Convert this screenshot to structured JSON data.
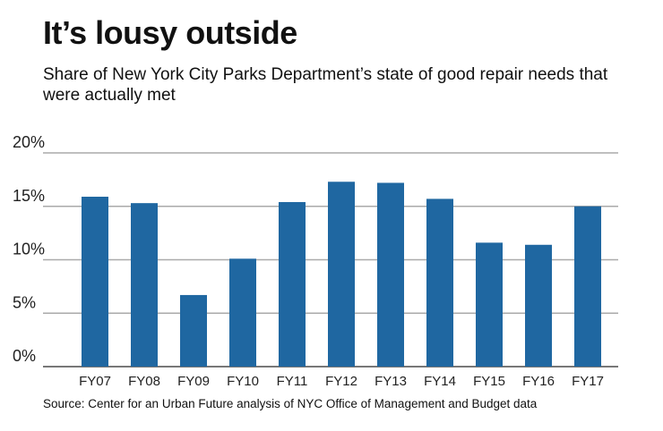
{
  "chart_data": {
    "type": "bar",
    "title": "It’s lousy outside",
    "subtitle": "Share of New York City Parks Department’s state of good repair needs that were actually met",
    "categories": [
      "FY07",
      "FY08",
      "FY09",
      "FY10",
      "FY11",
      "FY12",
      "FY13",
      "FY14",
      "FY15",
      "FY16",
      "FY17"
    ],
    "values": [
      15.9,
      15.3,
      6.7,
      10.1,
      15.4,
      17.3,
      17.2,
      15.7,
      11.6,
      11.4,
      15.0
    ],
    "ylim": [
      0,
      20
    ],
    "yticks": [
      0,
      5,
      10,
      15,
      20
    ],
    "ytick_labels": [
      "0%",
      "5%",
      "10%",
      "15%",
      "20%"
    ],
    "xlabel": "",
    "ylabel": "",
    "grid": true,
    "bar_color": "#1f67a1",
    "source": "Source: Center for an Urban Future analysis of NYC Office of Management and Budget data"
  }
}
